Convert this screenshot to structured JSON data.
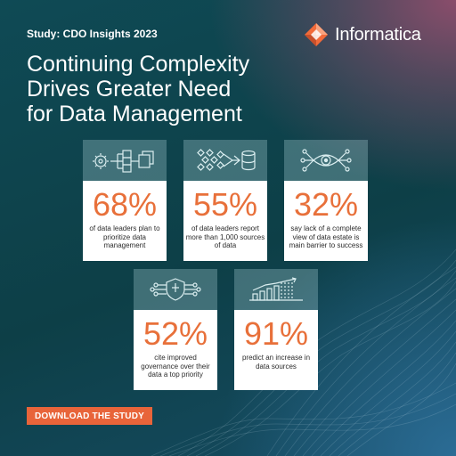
{
  "header": {
    "eyebrow": "Study: CDO Insights 2023",
    "brand": "Informatica",
    "title_lines": [
      "Continuing Complexity",
      "Drives Greater Need",
      "for Data Management"
    ]
  },
  "stats": [
    {
      "value": "68%",
      "description": "of data leaders plan to prioritize data management",
      "icon": "gears-documents-icon"
    },
    {
      "value": "55%",
      "description": "of data leaders report more than 1,000 sources of data",
      "icon": "diamonds-database-icon"
    },
    {
      "value": "32%",
      "description": "say lack of a complete view of data estate is main barrier to success",
      "icon": "eye-network-icon"
    },
    {
      "value": "52%",
      "description": "cite improved governance over their data a top priority",
      "icon": "shield-network-icon"
    },
    {
      "value": "91%",
      "description": "predict an increase in data sources",
      "icon": "bar-chart-growth-icon"
    }
  ],
  "cta": {
    "label": "DOWNLOAD THE STUDY"
  },
  "colors": {
    "accent": "#e8703a",
    "cta": "#e8643a",
    "background": "#0f4a55"
  }
}
